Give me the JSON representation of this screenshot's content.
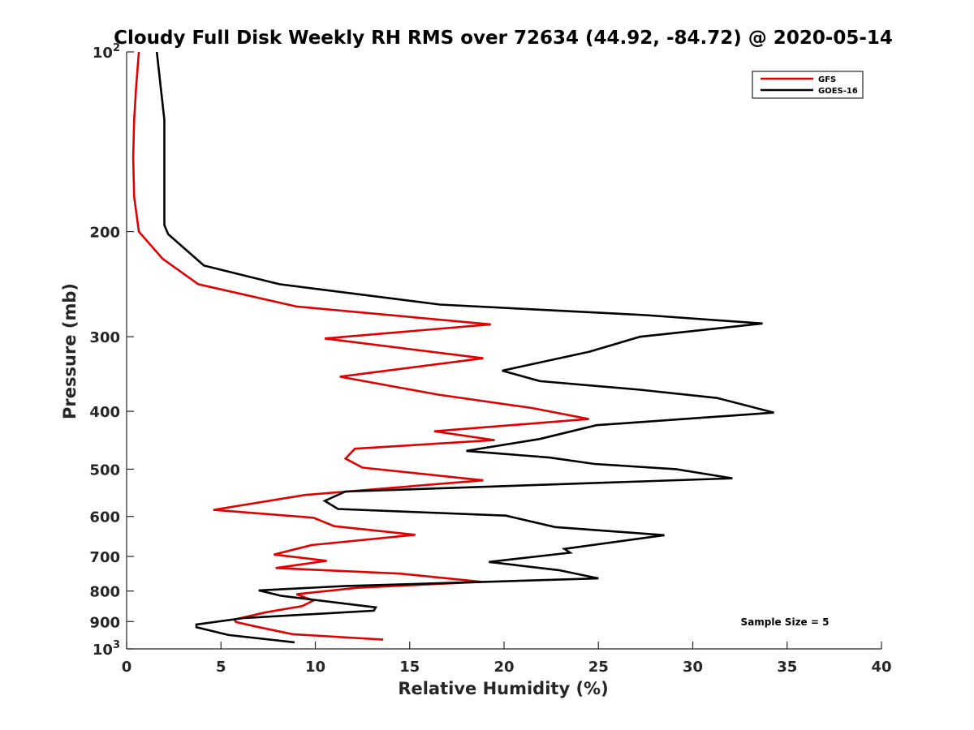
{
  "chart_data": {
    "type": "line",
    "title": "Cloudy Full Disk Weekly RH RMS over 72634 (44.92, -84.72) @ 2020-05-14",
    "xlabel": "Relative Humidity (%)",
    "ylabel": "Pressure (mb)",
    "xlim": [
      0,
      40
    ],
    "ylim": [
      100,
      1000
    ],
    "y_scale": "log",
    "y_reversed": true,
    "x_ticks": [
      0,
      5,
      10,
      15,
      20,
      25,
      30,
      35,
      40
    ],
    "x_tick_labels": [
      "0",
      "5",
      "10",
      "15",
      "20",
      "25",
      "30",
      "35",
      "40"
    ],
    "y_ticks": [
      100,
      200,
      300,
      400,
      500,
      600,
      700,
      800,
      900,
      1000
    ],
    "y_tick_labels": [
      {
        "base": "10",
        "exp": "2"
      },
      {
        "base": "200",
        "exp": ""
      },
      {
        "base": "300",
        "exp": ""
      },
      {
        "base": "400",
        "exp": ""
      },
      {
        "base": "500",
        "exp": ""
      },
      {
        "base": "600",
        "exp": ""
      },
      {
        "base": "700",
        "exp": ""
      },
      {
        "base": "800",
        "exp": ""
      },
      {
        "base": "900",
        "exp": ""
      },
      {
        "base": "10",
        "exp": "3"
      }
    ],
    "grid": false,
    "legend_position": "top-right",
    "annotation": "Sample Size = 5",
    "series": [
      {
        "name": "GFS",
        "color": "#e00000",
        "points": [
          [
            0.65,
            100
          ],
          [
            0.5,
            115
          ],
          [
            0.4,
            130
          ],
          [
            0.35,
            150
          ],
          [
            0.4,
            175
          ],
          [
            0.65,
            200
          ],
          [
            1.9,
            222
          ],
          [
            3.8,
            245
          ],
          [
            9.0,
            267
          ],
          [
            19.3,
            286
          ],
          [
            10.5,
            302
          ],
          [
            18.9,
            326
          ],
          [
            11.3,
            350
          ],
          [
            16.5,
            375
          ],
          [
            21.5,
            395
          ],
          [
            24.5,
            412
          ],
          [
            16.3,
            432
          ],
          [
            19.5,
            447
          ],
          [
            12.1,
            462
          ],
          [
            11.6,
            480
          ],
          [
            12.5,
            497
          ],
          [
            18.9,
            522
          ],
          [
            9.5,
            552
          ],
          [
            4.6,
            585
          ],
          [
            9.9,
            603
          ],
          [
            11.0,
            623
          ],
          [
            15.3,
            644
          ],
          [
            9.8,
            670
          ],
          [
            7.8,
            695
          ],
          [
            10.6,
            712
          ],
          [
            7.9,
            732
          ],
          [
            14.5,
            748
          ],
          [
            18.8,
            772
          ],
          [
            12.2,
            790
          ],
          [
            9.0,
            810
          ],
          [
            9.9,
            830
          ],
          [
            9.3,
            848
          ],
          [
            7.4,
            868
          ],
          [
            5.7,
            893
          ],
          [
            5.8,
            902
          ],
          [
            6.9,
            918
          ],
          [
            8.8,
            945
          ],
          [
            13.6,
            965
          ]
        ]
      },
      {
        "name": "GOES-16",
        "color": "#000000",
        "points": [
          [
            1.6,
            100
          ],
          [
            2.0,
            130
          ],
          [
            2.0,
            160
          ],
          [
            2.0,
            195
          ],
          [
            2.2,
            202
          ],
          [
            4.1,
            228
          ],
          [
            8.1,
            245
          ],
          [
            16.6,
            265
          ],
          [
            27.5,
            276
          ],
          [
            33.7,
            285
          ],
          [
            27.2,
            300
          ],
          [
            24.5,
            318
          ],
          [
            19.9,
            342
          ],
          [
            21.9,
            356
          ],
          [
            27.2,
            368
          ],
          [
            31.3,
            380
          ],
          [
            34.3,
            402
          ],
          [
            24.9,
            422
          ],
          [
            21.9,
            445
          ],
          [
            18.0,
            466
          ],
          [
            22.4,
            478
          ],
          [
            24.8,
            490
          ],
          [
            29.1,
            500
          ],
          [
            32.1,
            518
          ],
          [
            11.6,
            545
          ],
          [
            10.5,
            565
          ],
          [
            11.2,
            583
          ],
          [
            20.1,
            598
          ],
          [
            22.7,
            625
          ],
          [
            28.5,
            645
          ],
          [
            23.2,
            680
          ],
          [
            23.5,
            690
          ],
          [
            19.2,
            715
          ],
          [
            22.9,
            738
          ],
          [
            25.0,
            762
          ],
          [
            11.5,
            785
          ],
          [
            7.0,
            798
          ],
          [
            8.2,
            815
          ],
          [
            13.2,
            852
          ],
          [
            13.1,
            863
          ],
          [
            6.2,
            888
          ],
          [
            3.7,
            910
          ],
          [
            3.7,
            920
          ],
          [
            5.4,
            948
          ],
          [
            8.9,
            975
          ]
        ]
      }
    ]
  }
}
